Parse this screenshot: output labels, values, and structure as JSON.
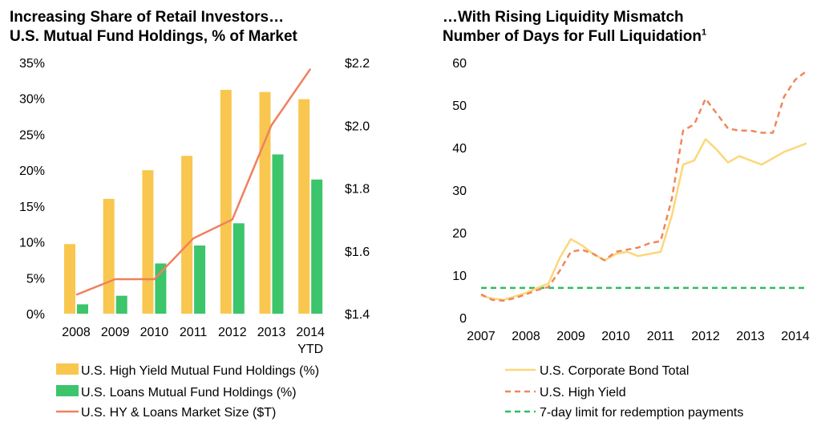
{
  "chart_data": [
    {
      "type": "bar",
      "title": "Increasing Share of Retail Investors…",
      "subtitle": "U.S. Mutual Fund Holdings, % of Market",
      "categories": [
        "2008",
        "2009",
        "2010",
        "2011",
        "2012",
        "2013",
        "2014"
      ],
      "category_sublabels": [
        "",
        "",
        "",
        "",
        "",
        "",
        "YTD"
      ],
      "ylim": [
        0,
        35
      ],
      "y_ticks": [
        "0%",
        "5%",
        "10%",
        "15%",
        "20%",
        "25%",
        "30%",
        "35%"
      ],
      "y2lim": [
        1.4,
        2.2
      ],
      "y2_ticks": [
        "$1.4",
        "$1.6",
        "$1.8",
        "$2.0",
        "$2.2"
      ],
      "grid": false,
      "legend_position": "bottom",
      "series": [
        {
          "name": "U.S. High Yield Mutual Fund Holdings (%)",
          "kind": "bar",
          "axis": "left",
          "color": "#F9C74F",
          "values": [
            9.7,
            16.0,
            20.0,
            22.0,
            31.2,
            30.9,
            29.9
          ]
        },
        {
          "name": "U.S. Loans Mutual Fund Holdings (%)",
          "kind": "bar",
          "axis": "left",
          "color": "#3CC56A",
          "values": [
            1.3,
            2.5,
            7.0,
            9.5,
            12.6,
            22.2,
            18.7
          ]
        },
        {
          "name": "U.S. HY & Loans Market Size ($T)",
          "kind": "line",
          "axis": "right",
          "color": "#F08060",
          "values": [
            1.46,
            1.51,
            1.51,
            1.64,
            1.7,
            2.0,
            2.18
          ]
        }
      ]
    },
    {
      "type": "line",
      "title": "…With Rising Liquidity Mismatch",
      "subtitle": "Number of Days for Full Liquidation",
      "subtitle_sup": "1",
      "x_ticks": [
        "2007",
        "2008",
        "2009",
        "2010",
        "2011",
        "2012",
        "2013",
        "2014"
      ],
      "xlim": [
        2007,
        2014.25
      ],
      "ylim": [
        0,
        60
      ],
      "y_ticks": [
        "0",
        "10",
        "20",
        "30",
        "40",
        "50",
        "60"
      ],
      "grid": false,
      "legend_position": "bottom",
      "series": [
        {
          "name": "U.S. Corporate Bond Total",
          "style": "solid",
          "color": "#FCD77A",
          "x": [
            2007,
            2007.25,
            2007.5,
            2007.75,
            2008,
            2008.25,
            2008.5,
            2008.75,
            2009,
            2009.25,
            2009.5,
            2009.75,
            2010,
            2010.25,
            2010.5,
            2010.75,
            2011,
            2011.25,
            2011.5,
            2011.75,
            2012,
            2012.25,
            2012.5,
            2012.75,
            2013,
            2013.25,
            2013.5,
            2013.75,
            2014,
            2014.25
          ],
          "y": [
            5.2,
            4.5,
            4.2,
            5.0,
            5.8,
            7.0,
            8.0,
            14.0,
            18.5,
            17.0,
            15.0,
            13.5,
            15.0,
            15.5,
            14.5,
            15.0,
            15.5,
            24.0,
            36.0,
            37.0,
            42.0,
            39.5,
            36.5,
            38.0,
            37.0,
            36.0,
            37.5,
            39.0,
            40.0,
            41.0
          ]
        },
        {
          "name": "U.S. High Yield",
          "style": "dashed",
          "color": "#F0875C",
          "x": [
            2007,
            2007.25,
            2007.5,
            2007.75,
            2008,
            2008.25,
            2008.5,
            2008.75,
            2009,
            2009.25,
            2009.5,
            2009.75,
            2010,
            2010.25,
            2010.5,
            2010.75,
            2011,
            2011.25,
            2011.5,
            2011.75,
            2012,
            2012.25,
            2012.5,
            2012.75,
            2013,
            2013.25,
            2013.5,
            2013.75,
            2014,
            2014.25
          ],
          "y": [
            5.5,
            4.2,
            4.0,
            4.6,
            5.5,
            6.5,
            7.2,
            11.0,
            15.5,
            16.0,
            15.0,
            13.5,
            15.5,
            16.0,
            16.5,
            17.5,
            18.0,
            28.0,
            44.0,
            45.5,
            51.5,
            48.0,
            44.5,
            44.0,
            44.0,
            43.5,
            43.5,
            52.0,
            56.0,
            58.0
          ]
        },
        {
          "name": "7-day limit for redemption payments",
          "style": "dashed",
          "color": "#2DBE60",
          "x": [
            2007,
            2014.25
          ],
          "y": [
            7,
            7
          ]
        }
      ]
    }
  ]
}
